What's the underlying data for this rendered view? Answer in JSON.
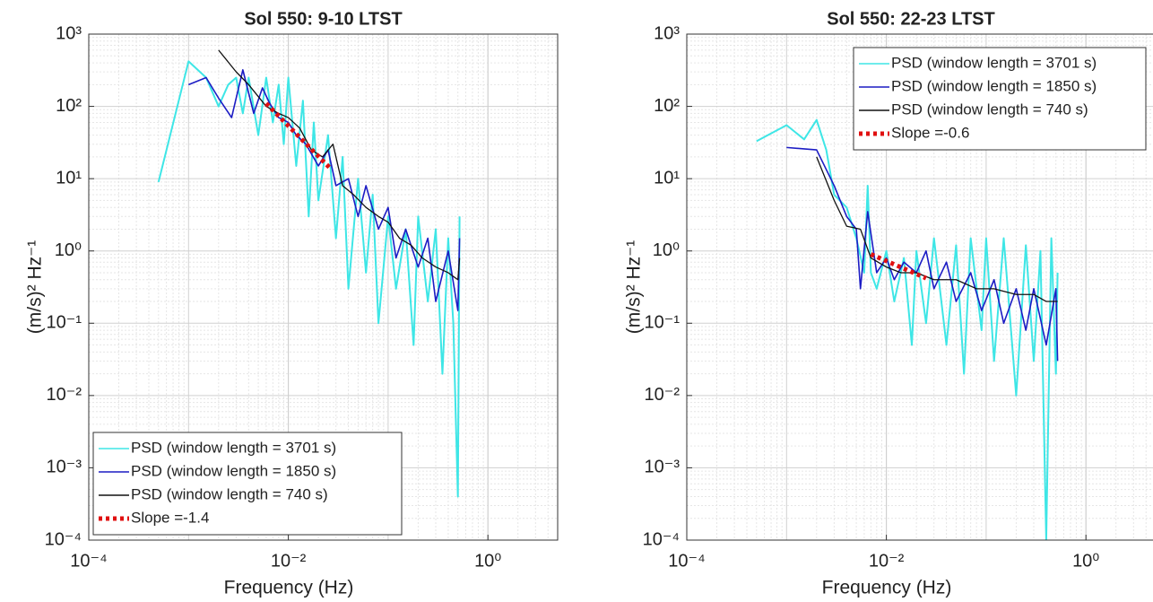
{
  "chart_data": [
    {
      "type": "line",
      "title": "Sol 550: 9-10 LTST",
      "x_label": "Frequency (Hz)",
      "y_label": "(m/s)² Hz⁻¹",
      "xscale": "log",
      "yscale": "log",
      "grid": true,
      "legend": "lower left",
      "xlim": [
        0.0001,
        5
      ],
      "ylim": [
        0.0001,
        1000
      ],
      "xticks": [
        {
          "value": 0.0001,
          "label": "10⁻⁴"
        },
        {
          "value": 0.01,
          "label": "10⁻²"
        },
        {
          "value": 1,
          "label": "10⁰"
        }
      ],
      "yticks": [
        {
          "value": 0.0001,
          "label": "10⁻⁴"
        },
        {
          "value": 0.001,
          "label": "10⁻³"
        },
        {
          "value": 0.01,
          "label": "10⁻²"
        },
        {
          "value": 0.1,
          "label": "10⁻¹"
        },
        {
          "value": 1,
          "label": "10⁰"
        },
        {
          "value": 10,
          "label": "10¹"
        },
        {
          "value": 100,
          "label": "10²"
        },
        {
          "value": 1000,
          "label": "10³"
        }
      ],
      "series": [
        {
          "name": "PSD (window length = 3701 s)",
          "color": "#3ee6e6",
          "x": [
            0.0005,
            0.001,
            0.0015,
            0.002,
            0.0025,
            0.003,
            0.0035,
            0.004,
            0.005,
            0.006,
            0.007,
            0.008,
            0.009,
            0.01,
            0.012,
            0.014,
            0.016,
            0.018,
            0.02,
            0.025,
            0.03,
            0.035,
            0.04,
            0.05,
            0.06,
            0.07,
            0.08,
            0.1,
            0.12,
            0.15,
            0.18,
            0.2,
            0.25,
            0.3,
            0.35,
            0.4,
            0.45,
            0.5,
            0.52
          ],
          "values": [
            9,
            420,
            250,
            100,
            200,
            250,
            80,
            250,
            40,
            250,
            60,
            200,
            30,
            250,
            15,
            120,
            3,
            60,
            5,
            40,
            1.5,
            20,
            0.3,
            10,
            0.5,
            6,
            0.1,
            3,
            0.3,
            2,
            0.05,
            3,
            0.2,
            2,
            0.02,
            1.5,
            0.1,
            0.0004,
            3
          ]
        },
        {
          "name": "PSD (window length = 1850 s)",
          "color": "#1c1cc4",
          "x": [
            0.001,
            0.0015,
            0.002,
            0.0027,
            0.0035,
            0.0045,
            0.0055,
            0.0065,
            0.008,
            0.01,
            0.012,
            0.015,
            0.02,
            0.025,
            0.03,
            0.04,
            0.05,
            0.06,
            0.08,
            0.1,
            0.12,
            0.15,
            0.2,
            0.25,
            0.3,
            0.4,
            0.5,
            0.52
          ],
          "values": [
            200,
            250,
            130,
            70,
            320,
            80,
            180,
            110,
            70,
            60,
            40,
            30,
            15,
            25,
            8,
            10,
            3,
            8,
            2,
            4,
            0.8,
            2,
            0.6,
            1.5,
            0.2,
            1,
            0.15,
            1.5
          ]
        },
        {
          "name": "PSD (window length = 740 s)",
          "color": "#111111",
          "x": [
            0.002,
            0.003,
            0.004,
            0.006,
            0.008,
            0.01,
            0.013,
            0.017,
            0.022,
            0.028,
            0.035,
            0.045,
            0.06,
            0.08,
            0.1,
            0.13,
            0.17,
            0.22,
            0.3,
            0.4,
            0.5,
            0.52
          ],
          "values": [
            600,
            300,
            200,
            100,
            80,
            70,
            50,
            25,
            20,
            30,
            8,
            6,
            4,
            3,
            2.5,
            1.5,
            1.2,
            0.8,
            0.6,
            0.5,
            0.4,
            0.8
          ]
        },
        {
          "name": "Slope =-1.4",
          "color": "#e01010",
          "linestyle": "dotted",
          "x": [
            0.006,
            0.027
          ],
          "values": [
            110,
            13.4
          ]
        }
      ]
    },
    {
      "type": "line",
      "title": "Sol 550: 22-23 LTST",
      "x_label": "Frequency (Hz)",
      "y_label": "(m/s)² Hz⁻¹",
      "xscale": "log",
      "yscale": "log",
      "grid": true,
      "legend": "upper right",
      "xlim": [
        0.0001,
        5
      ],
      "ylim": [
        0.0001,
        1000
      ],
      "xticks": [
        {
          "value": 0.0001,
          "label": "10⁻⁴"
        },
        {
          "value": 0.01,
          "label": "10⁻²"
        },
        {
          "value": 1,
          "label": "10⁰"
        }
      ],
      "yticks": [
        {
          "value": 0.0001,
          "label": "10⁻⁴"
        },
        {
          "value": 0.001,
          "label": "10⁻³"
        },
        {
          "value": 0.01,
          "label": "10⁻²"
        },
        {
          "value": 0.1,
          "label": "10⁻¹"
        },
        {
          "value": 1,
          "label": "10⁰"
        },
        {
          "value": 10,
          "label": "10¹"
        },
        {
          "value": 100,
          "label": "10²"
        },
        {
          "value": 1000,
          "label": "10³"
        }
      ],
      "series": [
        {
          "name": "PSD (window length = 3701 s)",
          "color": "#3ee6e6",
          "x": [
            0.0005,
            0.001,
            0.0015,
            0.002,
            0.0025,
            0.003,
            0.004,
            0.005,
            0.006,
            0.0065,
            0.007,
            0.008,
            0.01,
            0.012,
            0.015,
            0.018,
            0.02,
            0.025,
            0.03,
            0.04,
            0.05,
            0.06,
            0.07,
            0.09,
            0.1,
            0.12,
            0.15,
            0.2,
            0.25,
            0.3,
            0.35,
            0.4,
            0.45,
            0.5,
            0.52
          ],
          "values": [
            33,
            55,
            35,
            65,
            25,
            6,
            4,
            1.5,
            0.5,
            8,
            0.5,
            0.3,
            1,
            0.2,
            0.8,
            0.05,
            1,
            0.1,
            1.5,
            0.05,
            1.2,
            0.02,
            1.5,
            0.08,
            1.5,
            0.03,
            1.5,
            0.01,
            1.2,
            0.03,
            1,
            0.0001,
            1.5,
            0.02,
            0.5
          ]
        },
        {
          "name": "PSD (window length = 1850 s)",
          "color": "#1c1cc4",
          "x": [
            0.001,
            0.002,
            0.003,
            0.004,
            0.005,
            0.0055,
            0.0065,
            0.008,
            0.01,
            0.012,
            0.015,
            0.02,
            0.025,
            0.03,
            0.04,
            0.05,
            0.07,
            0.09,
            0.12,
            0.15,
            0.2,
            0.25,
            0.3,
            0.4,
            0.5,
            0.52
          ],
          "values": [
            27,
            25,
            8,
            3,
            2,
            0.3,
            3.5,
            0.5,
            0.8,
            0.4,
            0.7,
            0.5,
            1,
            0.3,
            0.7,
            0.2,
            0.5,
            0.15,
            0.4,
            0.1,
            0.3,
            0.08,
            0.3,
            0.05,
            0.3,
            0.03
          ]
        },
        {
          "name": "PSD (window length = 740 s)",
          "color": "#111111",
          "x": [
            0.002,
            0.003,
            0.004,
            0.0055,
            0.007,
            0.01,
            0.014,
            0.02,
            0.03,
            0.05,
            0.08,
            0.12,
            0.2,
            0.3,
            0.4,
            0.52
          ],
          "values": [
            20,
            5,
            2.2,
            2,
            0.8,
            0.6,
            0.5,
            0.5,
            0.4,
            0.4,
            0.3,
            0.3,
            0.25,
            0.25,
            0.2,
            0.2
          ]
        },
        {
          "name": "Slope =-0.6",
          "color": "#e01010",
          "linestyle": "dotted",
          "x": [
            0.007,
            0.025
          ],
          "values": [
            0.9,
            0.42
          ]
        }
      ]
    }
  ]
}
